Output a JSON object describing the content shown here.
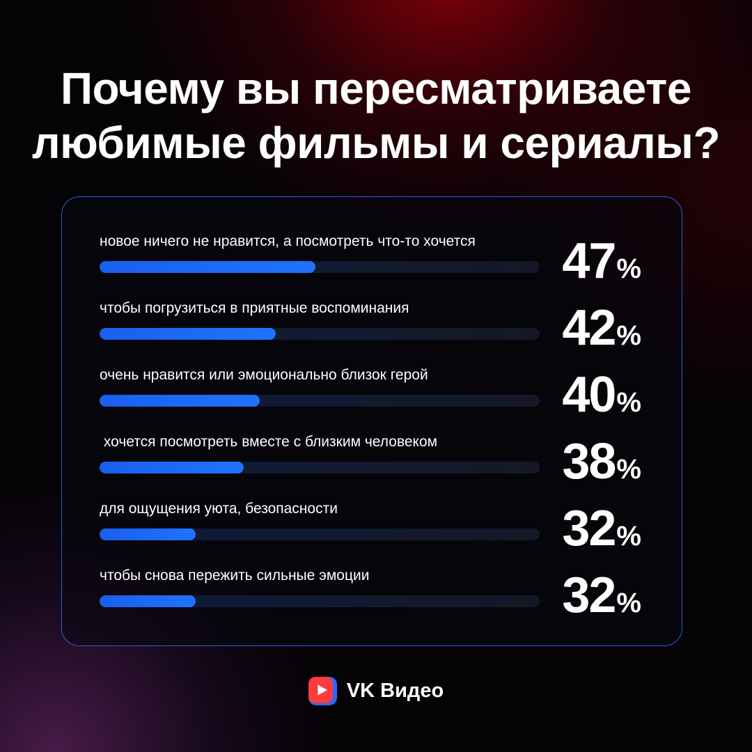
{
  "title": {
    "line1": "Почему вы пересматриваете",
    "line2": "любимые фильмы и сериалы?"
  },
  "colors": {
    "bar_fill": "#1f73ff",
    "card_border": "#2b5fd8",
    "background": "#050306",
    "logo_red": "#ff3b3b",
    "logo_blue": "#2a6bff"
  },
  "chart_data": {
    "type": "bar",
    "orientation": "horizontal",
    "title": "Почему вы пересматриваете любимые фильмы и сериалы?",
    "unit": "%",
    "categories": [
      "новое ничего не нравится, а посмотреть что-то хочется",
      "чтобы погрузиться в приятные воспоминания",
      "очень нравится или эмоционально близок герой",
      " хочется посмотреть вместе с близким человеком",
      "для ощущения уюта, безопасности",
      "чтобы снова пережить сильные эмоции"
    ],
    "values": [
      47,
      42,
      40,
      38,
      32,
      32
    ],
    "value_labels": [
      "47",
      "42",
      "40",
      "38",
      "32",
      "32"
    ],
    "xlim": [
      20,
      75
    ],
    "grid": false
  },
  "logo": {
    "icon": "vk-video-play-icon",
    "text": "VK Видео"
  }
}
